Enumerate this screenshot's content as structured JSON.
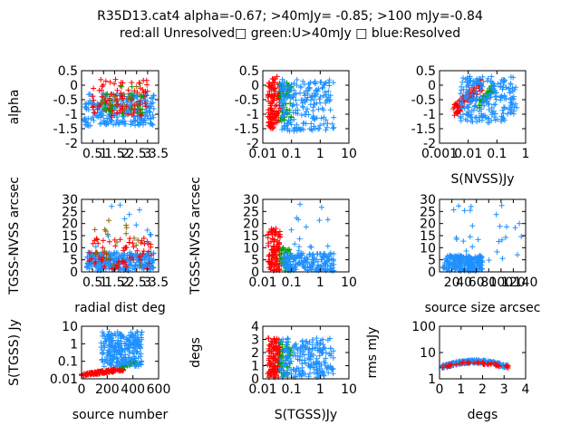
{
  "title": {
    "line1": "R35D13.cat4 alpha=-0.67; >40mJy= -0.85; >100 mJy=-0.84",
    "line2": "red:all Unresolved□ green:U>40mJy □ blue:Resolved"
  },
  "colors": {
    "red": "#ff0000",
    "green": "#00a000",
    "blue": "#1e90ff",
    "olive": "#8b6914"
  },
  "chart_data": [
    {
      "id": "p1",
      "type": "scatter",
      "xscale": "linear",
      "yscale": "linear",
      "xlim": [
        0,
        3.5
      ],
      "ylim": [
        -2,
        0.5
      ],
      "xticks": [
        0.5,
        1,
        1.5,
        2,
        2.5,
        3,
        3.5
      ],
      "xticklabels": [
        "0.5",
        "1",
        "1.5",
        "2",
        "2.5",
        "3",
        "3.5"
      ],
      "yticks": [
        0.5,
        0,
        -0.5,
        -1,
        -1.5,
        -2
      ],
      "yticklabels": [
        "0.5",
        "0",
        "-0.5",
        "-1",
        "-1.5",
        "-2"
      ],
      "xlabel": "",
      "ylabel": "alpha",
      "clouds": [
        {
          "series": "blue",
          "n": 260,
          "x": [
            0.1,
            3.3
          ],
          "y": [
            -1.4,
            -0.3
          ],
          "seed": 11
        },
        {
          "series": "red",
          "n": 90,
          "x": [
            0.5,
            3.0
          ],
          "y": [
            -1.1,
            0.2
          ],
          "seed": 12
        },
        {
          "series": "green",
          "n": 25,
          "x": [
            0.8,
            2.8
          ],
          "y": [
            -1.0,
            0.1
          ],
          "seed": 13
        },
        {
          "series": "olive",
          "n": 18,
          "x": [
            0.6,
            3.0
          ],
          "y": [
            -0.9,
            0.2
          ],
          "seed": 14
        }
      ]
    },
    {
      "id": "p2",
      "type": "scatter",
      "xscale": "log",
      "yscale": "linear",
      "xlim": [
        0.01,
        10
      ],
      "ylim": [
        -2,
        0.5
      ],
      "xticks": [
        0.01,
        0.1,
        1,
        10
      ],
      "xticklabels": [
        "0.01",
        "0.1",
        "1",
        "10"
      ],
      "yticks": [
        0.5,
        0,
        -0.5,
        -1,
        -1.5,
        -2
      ],
      "yticklabels": [
        "0.5",
        "0",
        "-0.5",
        "-1",
        "-1.5",
        "-2"
      ],
      "xlabel": "",
      "ylabel": "",
      "clouds": [
        {
          "series": "red",
          "n": 110,
          "x": [
            0.015,
            0.04
          ],
          "y": [
            -1.5,
            0.3
          ],
          "seed": 21
        },
        {
          "series": "green",
          "n": 50,
          "x": [
            0.04,
            0.1
          ],
          "y": [
            -1.3,
            0.1
          ],
          "seed": 22
        },
        {
          "series": "blue",
          "n": 200,
          "x": [
            0.04,
            3.0
          ],
          "y": [
            -1.6,
            0.2
          ],
          "seed": 23
        }
      ]
    },
    {
      "id": "p3",
      "type": "scatter",
      "xscale": "log",
      "yscale": "linear",
      "xlim": [
        0.001,
        1
      ],
      "ylim": [
        -2,
        0.5
      ],
      "xticks": [
        0.001,
        0.01,
        0.1,
        1
      ],
      "xticklabels": [
        "0.001",
        "0.01",
        "0.1",
        "1"
      ],
      "yticks": [
        0.5,
        0,
        -0.5,
        -1,
        -1.5,
        -2
      ],
      "yticklabels": [
        "0.5",
        "0",
        "-0.5",
        "-1",
        "-1.5",
        "-2"
      ],
      "xlabel": "S(NVSS)Jy",
      "ylabel": "",
      "clouds": [
        {
          "series": "red",
          "n": 90,
          "x": [
            0.003,
            0.03
          ],
          "y": [
            -1.1,
            0.2
          ],
          "trend": true,
          "seed": 31
        },
        {
          "series": "green",
          "n": 40,
          "x": [
            0.02,
            0.08
          ],
          "y": [
            -0.9,
            0.1
          ],
          "trend": true,
          "seed": 32
        },
        {
          "series": "blue",
          "n": 220,
          "x": [
            0.005,
            0.5
          ],
          "y": [
            -1.3,
            0.3
          ],
          "seed": 33
        }
      ]
    },
    {
      "id": "p4",
      "type": "scatter",
      "xscale": "linear",
      "yscale": "linear",
      "xlim": [
        0,
        3.5
      ],
      "ylim": [
        0,
        30
      ],
      "xticks": [
        0.5,
        1,
        1.5,
        2,
        2.5,
        3,
        3.5
      ],
      "xticklabels": [
        "0.5",
        "1",
        "1.5",
        "2",
        "2.5",
        "3",
        "3.5"
      ],
      "yticks": [
        0,
        5,
        10,
        15,
        20,
        25,
        30
      ],
      "yticklabels": [
        "0",
        "5",
        "10",
        "15",
        "20",
        "25",
        "30"
      ],
      "xlabel": "radial dist deg",
      "ylabel": "TGSS-NVSS arcsec",
      "clouds": [
        {
          "series": "blue",
          "n": 260,
          "x": [
            0.2,
            3.3
          ],
          "y": [
            0.5,
            8
          ],
          "seed": 41
        },
        {
          "series": "red",
          "n": 70,
          "x": [
            0.3,
            3.2
          ],
          "y": [
            1,
            14
          ],
          "seed": 42
        },
        {
          "series": "olive",
          "n": 20,
          "x": [
            0.5,
            3.0
          ],
          "y": [
            2,
            22
          ],
          "seed": 43
        },
        {
          "series": "blue",
          "n": 12,
          "x": [
            0.5,
            3.3
          ],
          "y": [
            10,
            28
          ],
          "seed": 44
        }
      ]
    },
    {
      "id": "p5",
      "type": "scatter",
      "xscale": "log",
      "yscale": "linear",
      "xlim": [
        0.01,
        10
      ],
      "ylim": [
        0,
        30
      ],
      "xticks": [
        0.01,
        0.1,
        1,
        10
      ],
      "xticklabels": [
        "0.01",
        "0.1",
        "1",
        "10"
      ],
      "yticks": [
        0,
        5,
        10,
        15,
        20,
        25,
        30
      ],
      "yticklabels": [
        "0",
        "5",
        "10",
        "15",
        "20",
        "25",
        "30"
      ],
      "xlabel": "",
      "ylabel": "TGSS-NVSS arcsec",
      "clouds": [
        {
          "series": "red",
          "n": 100,
          "x": [
            0.015,
            0.04
          ],
          "y": [
            0.5,
            18
          ],
          "seed": 51
        },
        {
          "series": "green",
          "n": 40,
          "x": [
            0.04,
            0.1
          ],
          "y": [
            0.5,
            10
          ],
          "seed": 52
        },
        {
          "series": "blue",
          "n": 180,
          "x": [
            0.05,
            3.0
          ],
          "y": [
            0.3,
            8
          ],
          "seed": 53
        },
        {
          "series": "blue",
          "n": 15,
          "x": [
            0.05,
            2.0
          ],
          "y": [
            8,
            28
          ],
          "seed": 54
        }
      ]
    },
    {
      "id": "p6",
      "type": "scatter",
      "xscale": "linear",
      "yscale": "linear",
      "xlim": [
        0,
        140
      ],
      "ylim": [
        0,
        30
      ],
      "xticks": [
        20,
        40,
        60,
        80,
        100,
        120,
        140
      ],
      "xticklabels": [
        "20",
        "40",
        "60",
        "80",
        "100",
        "120",
        "140"
      ],
      "yticks": [
        0,
        5,
        10,
        15,
        20,
        25,
        30
      ],
      "yticklabels": [
        "0",
        "5",
        "10",
        "15",
        "20",
        "25",
        "30"
      ],
      "xlabel": "source size arcsec",
      "ylabel": "",
      "clouds": [
        {
          "series": "blue",
          "n": 200,
          "x": [
            5,
            70
          ],
          "y": [
            0.3,
            7
          ],
          "seed": 61
        },
        {
          "series": "blue",
          "n": 30,
          "x": [
            20,
            135
          ],
          "y": [
            2,
            28
          ],
          "seed": 62
        }
      ]
    },
    {
      "id": "p7",
      "type": "scatter",
      "xscale": "linear",
      "yscale": "log",
      "xlim": [
        0,
        600
      ],
      "ylim": [
        0.01,
        10
      ],
      "xticks": [
        0,
        200,
        400,
        600
      ],
      "xticklabels": [
        "0",
        "200",
        "400",
        "600"
      ],
      "yticks": [
        0.01,
        0.1,
        1,
        10
      ],
      "yticklabels": [
        "0.01",
        "0.1",
        "1",
        "10"
      ],
      "xlabel": "source number",
      "ylabel": "S(TGSS) Jy",
      "clouds": [
        {
          "series": "red",
          "n": 150,
          "x": [
            0,
            330
          ],
          "y": [
            0.015,
            0.04
          ],
          "rising": true,
          "seed": 71
        },
        {
          "series": "green",
          "n": 50,
          "x": [
            300,
            420
          ],
          "y": [
            0.04,
            0.12
          ],
          "rising": true,
          "seed": 72
        },
        {
          "series": "blue",
          "n": 260,
          "x": [
            150,
            470
          ],
          "y": [
            0.05,
            5
          ],
          "seed": 73
        }
      ]
    },
    {
      "id": "p8",
      "type": "scatter",
      "xscale": "log",
      "yscale": "linear",
      "xlim": [
        0.01,
        10
      ],
      "ylim": [
        0,
        4
      ],
      "xticks": [
        0.01,
        0.1,
        1,
        10
      ],
      "xticklabels": [
        "0.01",
        "0.1",
        "1",
        "10"
      ],
      "yticks": [
        0,
        1,
        2,
        3,
        4
      ],
      "yticklabels": [
        "0",
        "1",
        "2",
        "3",
        "4"
      ],
      "xlabel": "S(TGSS)Jy",
      "ylabel": "degs",
      "clouds": [
        {
          "series": "red",
          "n": 110,
          "x": [
            0.015,
            0.04
          ],
          "y": [
            0.1,
            3.1
          ],
          "seed": 81
        },
        {
          "series": "green",
          "n": 40,
          "x": [
            0.04,
            0.1
          ],
          "y": [
            0.1,
            3.0
          ],
          "seed": 82
        },
        {
          "series": "blue",
          "n": 200,
          "x": [
            0.04,
            3.0
          ],
          "y": [
            0.1,
            3.1
          ],
          "seed": 83
        }
      ]
    },
    {
      "id": "p9",
      "type": "scatter",
      "xscale": "linear",
      "yscale": "log",
      "xlim": [
        0,
        4
      ],
      "ylim": [
        1,
        100
      ],
      "xticks": [
        0,
        1,
        2,
        3,
        4
      ],
      "xticklabels": [
        "0",
        "1",
        "2",
        "3",
        "4"
      ],
      "yticks": [
        1,
        10,
        100
      ],
      "yticklabels": [
        "1",
        "10",
        "100"
      ],
      "xlabel": "degs",
      "ylabel": "rms mJy",
      "clouds": [
        {
          "series": "blue",
          "n": 260,
          "x": [
            0.1,
            3.2
          ],
          "y": [
            2.5,
            6
          ],
          "hump": true,
          "seed": 91
        },
        {
          "series": "red",
          "n": 40,
          "x": [
            0.1,
            3.2
          ],
          "y": [
            2.5,
            5
          ],
          "hump": true,
          "seed": 92
        }
      ]
    }
  ]
}
